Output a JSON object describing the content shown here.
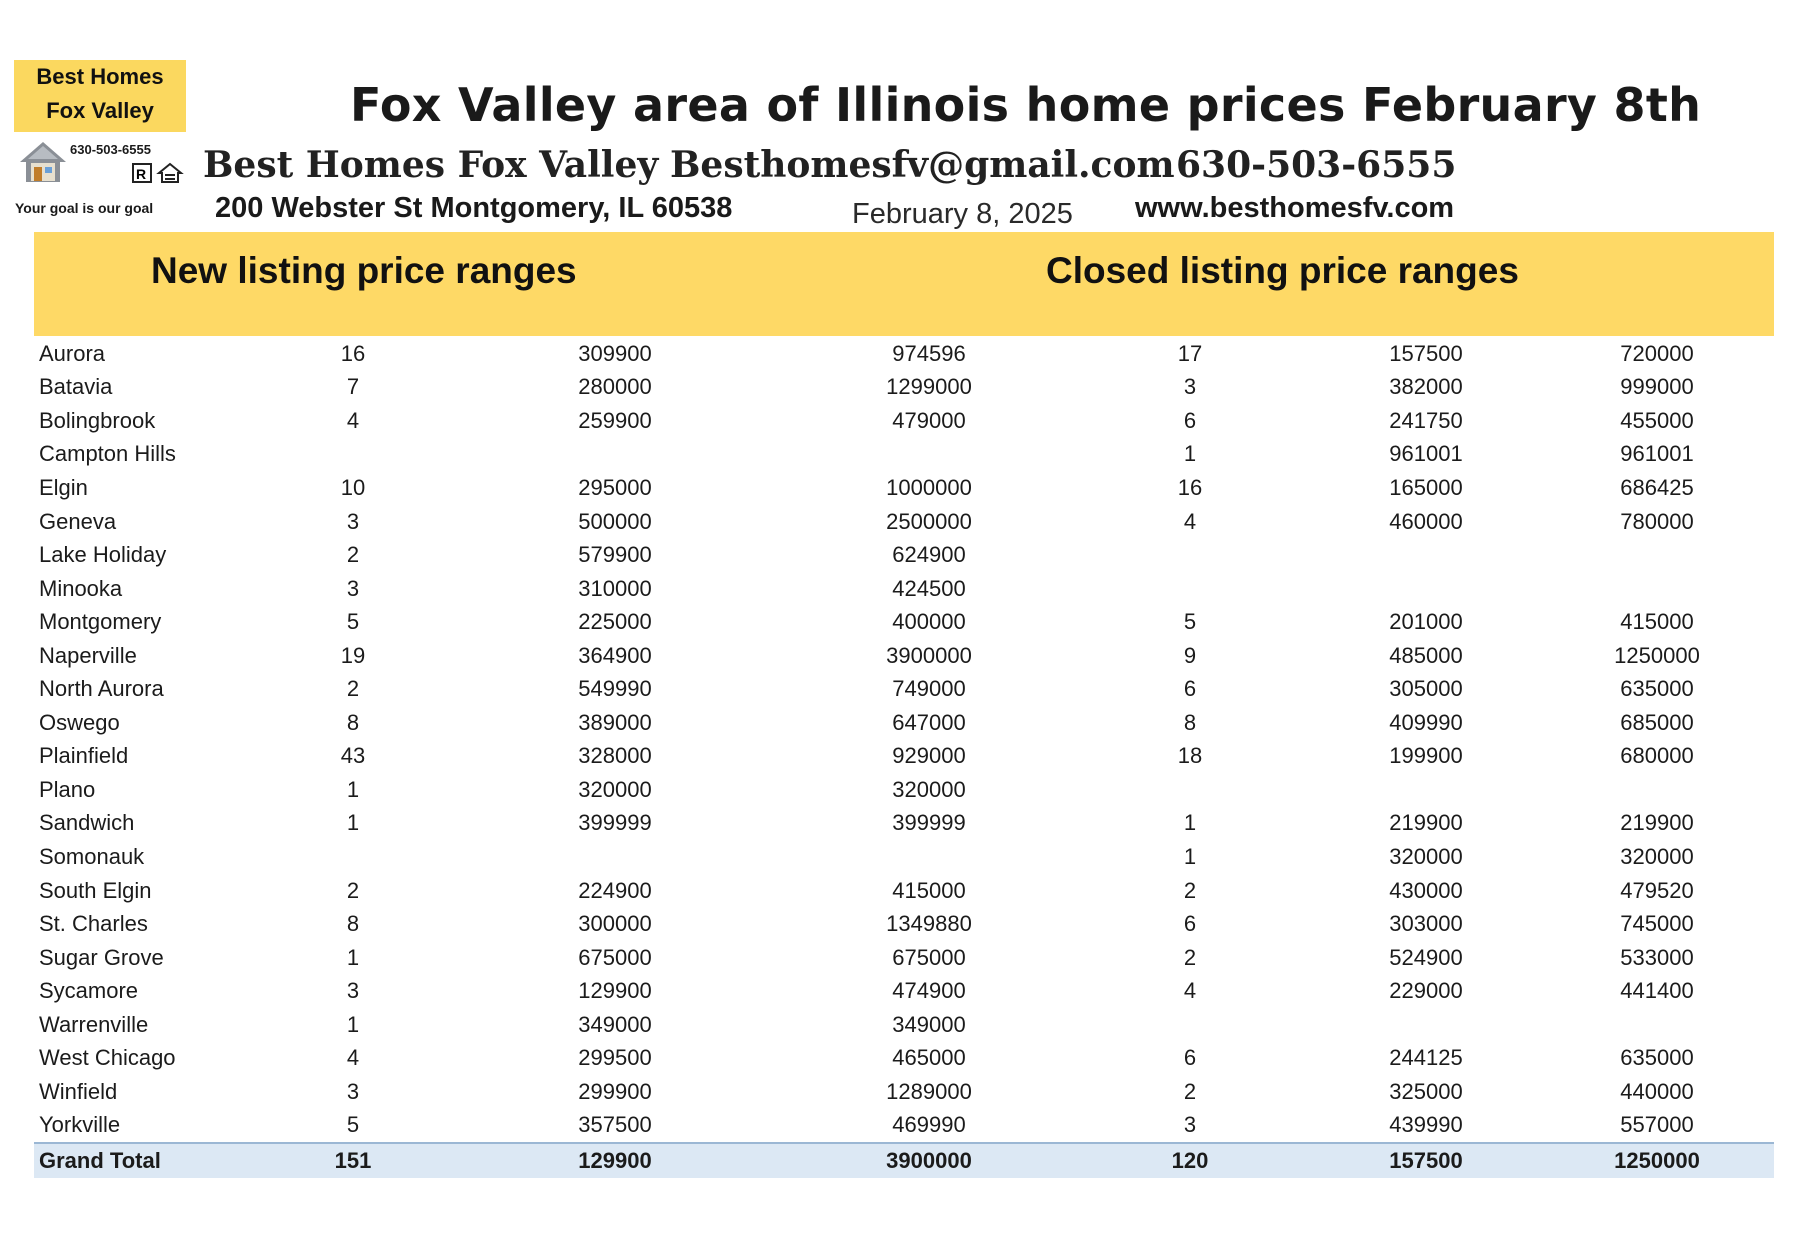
{
  "logo": {
    "line1": "Best Homes",
    "line2": "Fox Valley",
    "phone": "630-503-6555",
    "tagline": "Your goal is our goal",
    "icons": [
      "house-icon",
      "realtor-icon",
      "equal-housing-icon"
    ]
  },
  "header": {
    "title": "Fox Valley area of Illinois home prices February 8th",
    "company": "Best Homes Fox Valley",
    "email": "Besthomesfv@gmail.com",
    "phone": "630-503-6555",
    "address": "200 Webster St Montgomery, IL 60538",
    "date": "February 8, 2025",
    "website": "www.besthomesfv.com"
  },
  "sections": {
    "new_label": "New listing price ranges",
    "closed_label": "Closed listing price ranges"
  },
  "colors": {
    "band": "#fed966",
    "logo_bg": "#fbd85f",
    "total_row": "#dce8f4"
  },
  "rows": [
    {
      "city": "Aurora",
      "new_count": "16",
      "new_low": "309900",
      "new_high": "974596",
      "closed_count": "17",
      "closed_low": "157500",
      "closed_high": "720000"
    },
    {
      "city": "Batavia",
      "new_count": "7",
      "new_low": "280000",
      "new_high": "1299000",
      "closed_count": "3",
      "closed_low": "382000",
      "closed_high": "999000"
    },
    {
      "city": "Bolingbrook",
      "new_count": "4",
      "new_low": "259900",
      "new_high": "479000",
      "closed_count": "6",
      "closed_low": "241750",
      "closed_high": "455000"
    },
    {
      "city": "Campton Hills",
      "new_count": "",
      "new_low": "",
      "new_high": "",
      "closed_count": "1",
      "closed_low": "961001",
      "closed_high": "961001"
    },
    {
      "city": "Elgin",
      "new_count": "10",
      "new_low": "295000",
      "new_high": "1000000",
      "closed_count": "16",
      "closed_low": "165000",
      "closed_high": "686425"
    },
    {
      "city": "Geneva",
      "new_count": "3",
      "new_low": "500000",
      "new_high": "2500000",
      "closed_count": "4",
      "closed_low": "460000",
      "closed_high": "780000"
    },
    {
      "city": "Lake Holiday",
      "new_count": "2",
      "new_low": "579900",
      "new_high": "624900",
      "closed_count": "",
      "closed_low": "",
      "closed_high": ""
    },
    {
      "city": "Minooka",
      "new_count": "3",
      "new_low": "310000",
      "new_high": "424500",
      "closed_count": "",
      "closed_low": "",
      "closed_high": ""
    },
    {
      "city": "Montgomery",
      "new_count": "5",
      "new_low": "225000",
      "new_high": "400000",
      "closed_count": "5",
      "closed_low": "201000",
      "closed_high": "415000"
    },
    {
      "city": "Naperville",
      "new_count": "19",
      "new_low": "364900",
      "new_high": "3900000",
      "closed_count": "9",
      "closed_low": "485000",
      "closed_high": "1250000"
    },
    {
      "city": "North Aurora",
      "new_count": "2",
      "new_low": "549990",
      "new_high": "749000",
      "closed_count": "6",
      "closed_low": "305000",
      "closed_high": "635000"
    },
    {
      "city": "Oswego",
      "new_count": "8",
      "new_low": "389000",
      "new_high": "647000",
      "closed_count": "8",
      "closed_low": "409990",
      "closed_high": "685000"
    },
    {
      "city": "Plainfield",
      "new_count": "43",
      "new_low": "328000",
      "new_high": "929000",
      "closed_count": "18",
      "closed_low": "199900",
      "closed_high": "680000"
    },
    {
      "city": "Plano",
      "new_count": "1",
      "new_low": "320000",
      "new_high": "320000",
      "closed_count": "",
      "closed_low": "",
      "closed_high": ""
    },
    {
      "city": "Sandwich",
      "new_count": "1",
      "new_low": "399999",
      "new_high": "399999",
      "closed_count": "1",
      "closed_low": "219900",
      "closed_high": "219900"
    },
    {
      "city": "Somonauk",
      "new_count": "",
      "new_low": "",
      "new_high": "",
      "closed_count": "1",
      "closed_low": "320000",
      "closed_high": "320000"
    },
    {
      "city": "South Elgin",
      "new_count": "2",
      "new_low": "224900",
      "new_high": "415000",
      "closed_count": "2",
      "closed_low": "430000",
      "closed_high": "479520"
    },
    {
      "city": "St. Charles",
      "new_count": "8",
      "new_low": "300000",
      "new_high": "1349880",
      "closed_count": "6",
      "closed_low": "303000",
      "closed_high": "745000"
    },
    {
      "city": "Sugar Grove",
      "new_count": "1",
      "new_low": "675000",
      "new_high": "675000",
      "closed_count": "2",
      "closed_low": "524900",
      "closed_high": "533000"
    },
    {
      "city": "Sycamore",
      "new_count": "3",
      "new_low": "129900",
      "new_high": "474900",
      "closed_count": "4",
      "closed_low": "229000",
      "closed_high": "441400"
    },
    {
      "city": "Warrenville",
      "new_count": "1",
      "new_low": "349000",
      "new_high": "349000",
      "closed_count": "",
      "closed_low": "",
      "closed_high": ""
    },
    {
      "city": "West Chicago",
      "new_count": "4",
      "new_low": "299500",
      "new_high": "465000",
      "closed_count": "6",
      "closed_low": "244125",
      "closed_high": "635000"
    },
    {
      "city": "Winfield",
      "new_count": "3",
      "new_low": "299900",
      "new_high": "1289000",
      "closed_count": "2",
      "closed_low": "325000",
      "closed_high": "440000"
    },
    {
      "city": "Yorkville",
      "new_count": "5",
      "new_low": "357500",
      "new_high": "469990",
      "closed_count": "3",
      "closed_low": "439990",
      "closed_high": "557000"
    }
  ],
  "total": {
    "city": "Grand Total",
    "new_count": "151",
    "new_low": "129900",
    "new_high": "3900000",
    "closed_count": "120",
    "closed_low": "157500",
    "closed_high": "1250000"
  }
}
